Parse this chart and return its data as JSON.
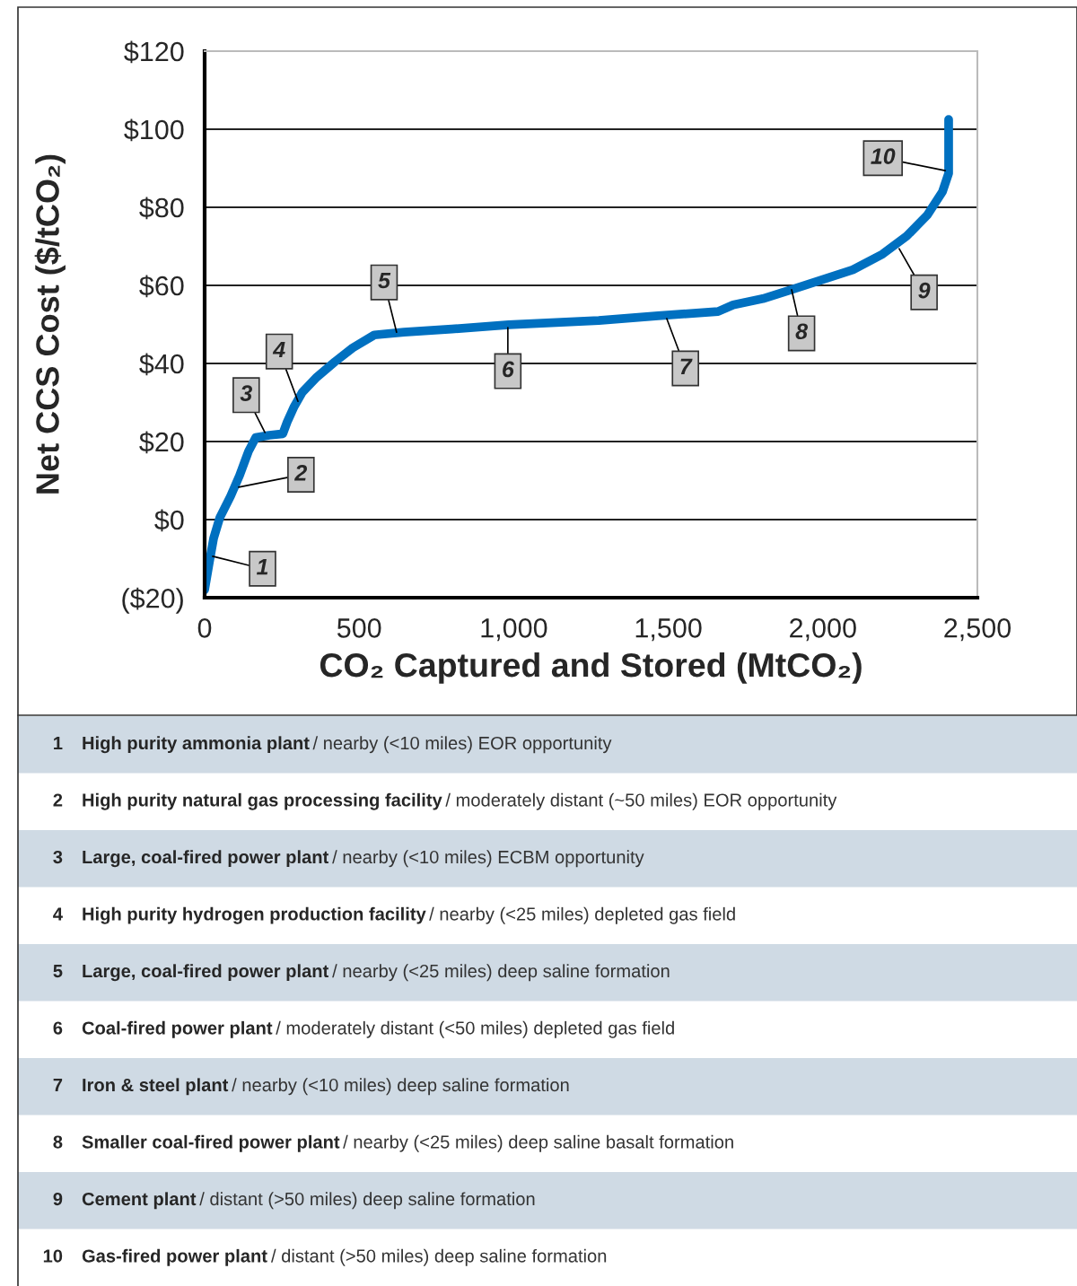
{
  "chart_data": {
    "type": "line",
    "xlabel": "CO₂ Captured and Stored (MtCO₂)",
    "ylabel": "Net CCS Cost ($/tCO₂)",
    "x": [
      0,
      15,
      29,
      49,
      84,
      113,
      142,
      165,
      209,
      253,
      267,
      290,
      316,
      363,
      421,
      479,
      549,
      645,
      800,
      984,
      1275,
      1467,
      1661,
      1710,
      1806,
      1902,
      2097,
      2193,
      2271,
      2338,
      2387,
      2407,
      2407,
      2407
    ],
    "series": [
      {
        "color": "#0070c0",
        "values": [
          -18,
          -11,
          -4.8,
          0.5,
          6,
          11.3,
          17.5,
          21,
          21.6,
          22,
          25,
          29,
          32.6,
          36.5,
          40.4,
          44,
          47.3,
          48,
          48.8,
          49.9,
          51,
          52.2,
          53.3,
          55,
          56.6,
          59,
          64,
          68,
          72.6,
          78,
          84,
          88.7,
          96.3,
          102.5
        ]
      }
    ],
    "xlim": [
      0,
      2500
    ],
    "ylim": [
      -20,
      120
    ],
    "xticks": [
      0,
      500,
      {
        "value": 1000,
        "label": "1,000"
      },
      {
        "value": 1500,
        "label": "1,500"
      },
      {
        "value": 2000,
        "label": "2,000"
      },
      {
        "value": 2500,
        "label": "2,500"
      }
    ],
    "yticks": [
      {
        "value": -20,
        "label": "($20)"
      },
      {
        "value": 0,
        "label": "$0"
      },
      {
        "value": 20,
        "label": "$20"
      },
      {
        "value": 40,
        "label": "$40"
      },
      {
        "value": 60,
        "label": "$60"
      },
      {
        "value": 80,
        "label": "$80"
      },
      {
        "value": 100,
        "label": "$100"
      },
      {
        "value": 120,
        "label": "$120"
      }
    ],
    "grid": "y",
    "legend": false,
    "annotations": [
      {
        "text": "1",
        "x": 26,
        "y": -9.4
      },
      {
        "text": "2",
        "x": 110,
        "y": 8.3
      },
      {
        "text": "3",
        "x": 195,
        "y": 22.3
      },
      {
        "text": "4",
        "x": 302,
        "y": 30.3
      },
      {
        "text": "5",
        "x": 621,
        "y": 48
      },
      {
        "text": "6",
        "x": 981,
        "y": 49.2
      },
      {
        "text": "7",
        "x": 1495,
        "y": 51.5
      },
      {
        "text": "8",
        "x": 1899,
        "y": 58.9
      },
      {
        "text": "9",
        "x": 2247,
        "y": 69.4
      },
      {
        "text": "10",
        "x": 2396,
        "y": 89.4
      },
      "1 High purity ammonia plant / nearby (<10 miles) EOR opportunity",
      "2 High purity natural gas processing facility / moderately distant (~50 miles) EOR opportunity",
      "3 Large, coal-fired power plant / nearby (<10 miles) ECBM opportunity",
      "4 High purity hydrogen production facility / nearby (<25 miles) depleted gas field",
      "5 Large, coal-fired power plant / nearby (<25 miles) deep saline formation",
      "6 Coal-fired power plant / moderately distant (<50 miles) depleted gas field",
      "7 Iron & steel plant / nearby (<10 miles) deep saline formation",
      "8 Smaller coal-fired power plant / nearby (<25 miles) deep saline basalt formation",
      "9 Cement plant / distant (>50 miles) deep saline formation",
      "10 Gas-fired power plant / distant (>50 miles) deep saline formation"
    ]
  }
}
